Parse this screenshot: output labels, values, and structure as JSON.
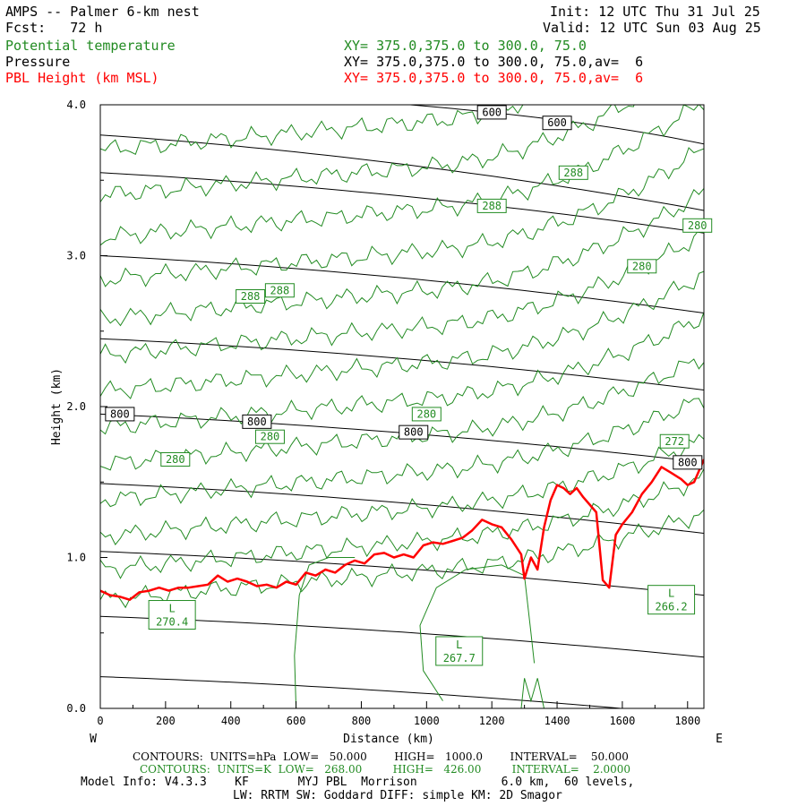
{
  "header": {
    "title": "AMPS -- Palmer 6-km nest",
    "fcst": "Fcst:   72 h",
    "init": "Init: 12 UTC Thu 31 Jul 25",
    "valid": "Valid: 12 UTC Sun 03 Aug 25",
    "field1": "Potential temperature",
    "field2": "Pressure",
    "field3": "PBL Height (km MSL)",
    "xy1": "XY= 375.0,375.0 to 300.0, 75.0",
    "xy2": "XY= 375.0,375.0 to 300.0, 75.0,av=  6",
    "xy3": "XY= 375.0,375.0 to 300.0, 75.0,av=  6"
  },
  "colors": {
    "theta": "#228b22",
    "pressure": "#000000",
    "pbl": "#ff0000"
  },
  "chart_data": {
    "type": "line",
    "xlabel": "Distance (km)",
    "ylabel": "Height (km)",
    "xlim": [
      0,
      1850
    ],
    "ylim": [
      0.0,
      4.0
    ],
    "x_ticks": [
      0,
      200,
      400,
      600,
      800,
      1000,
      1200,
      1400,
      1600,
      1800
    ],
    "y_ticks": [
      "0.0",
      "1.0",
      "2.0",
      "3.0",
      "4.0"
    ],
    "west_label": "W",
    "east_label": "E",
    "pressure_contour_labels": [
      {
        "text": "600",
        "x": 1200,
        "y": 3.95
      },
      {
        "text": "600",
        "x": 1400,
        "y": 3.88
      },
      {
        "text": "800",
        "x": 60,
        "y": 1.95
      },
      {
        "text": "800",
        "x": 480,
        "y": 1.9
      },
      {
        "text": "800",
        "x": 960,
        "y": 1.83
      },
      {
        "text": "800",
        "x": 1800,
        "y": 1.63
      }
    ],
    "theta_contour_labels": [
      {
        "text": "288",
        "x": 1450,
        "y": 3.55
      },
      {
        "text": "288",
        "x": 1200,
        "y": 3.33
      },
      {
        "text": "288",
        "x": 460,
        "y": 2.73
      },
      {
        "text": "288",
        "x": 550,
        "y": 2.77
      },
      {
        "text": "280",
        "x": 1860,
        "y": 3.2
      },
      {
        "text": "280",
        "x": 1660,
        "y": 2.93
      },
      {
        "text": "280",
        "x": 1000,
        "y": 1.95
      },
      {
        "text": "280",
        "x": 520,
        "y": 1.8
      },
      {
        "text": "280",
        "x": 230,
        "y": 1.65
      },
      {
        "text": "272",
        "x": 1760,
        "y": 1.77
      }
    ],
    "lows": [
      {
        "label": "L",
        "value": "270.4",
        "x": 220,
        "y": 0.62
      },
      {
        "label": "L",
        "value": "267.7",
        "x": 1100,
        "y": 0.38
      },
      {
        "label": "L",
        "value": "266.2",
        "x": 1780,
        "y": 0.72
      }
    ],
    "series": [
      {
        "name": "PBL Height (km MSL)",
        "x": [
          0,
          30,
          60,
          90,
          120,
          150,
          180,
          210,
          240,
          270,
          300,
          330,
          360,
          390,
          420,
          450,
          480,
          510,
          540,
          570,
          600,
          630,
          660,
          690,
          720,
          750,
          780,
          810,
          840,
          870,
          900,
          930,
          960,
          990,
          1020,
          1050,
          1080,
          1110,
          1140,
          1170,
          1200,
          1230,
          1260,
          1290,
          1300,
          1320,
          1340,
          1360,
          1380,
          1400,
          1420,
          1440,
          1460,
          1480,
          1500,
          1520,
          1540,
          1560,
          1580,
          1600,
          1630,
          1660,
          1690,
          1720,
          1750,
          1780,
          1800,
          1820,
          1850
        ],
        "y": [
          0.78,
          0.75,
          0.74,
          0.72,
          0.77,
          0.78,
          0.8,
          0.78,
          0.8,
          0.8,
          0.81,
          0.82,
          0.88,
          0.84,
          0.86,
          0.84,
          0.81,
          0.82,
          0.8,
          0.84,
          0.82,
          0.9,
          0.88,
          0.92,
          0.9,
          0.95,
          0.98,
          0.96,
          1.02,
          1.03,
          1.0,
          1.02,
          1.0,
          1.08,
          1.1,
          1.09,
          1.11,
          1.13,
          1.18,
          1.25,
          1.22,
          1.2,
          1.12,
          1.02,
          0.86,
          1.0,
          0.92,
          1.2,
          1.38,
          1.48,
          1.46,
          1.42,
          1.46,
          1.4,
          1.35,
          1.3,
          0.85,
          0.8,
          1.15,
          1.22,
          1.3,
          1.42,
          1.5,
          1.6,
          1.56,
          1.52,
          1.48,
          1.5,
          1.65
        ]
      }
    ]
  },
  "footer": {
    "line1": "CONTOURS:  UNITS=hPa  LOW=   50.000        HIGH=   1000.0        INTERVAL=    50.000",
    "line2": "CONTOURS:  UNITS=K  LOW=   268.00         HIGH=   426.00         INTERVAL=    2.0000",
    "line3": "Model Info: V4.3.3    KF       MYJ PBL  Morrison            6.0 km,  60 levels,",
    "line4": "LW: RRTM SW: Goddard DIFF: simple KM: 2D Smagor"
  }
}
